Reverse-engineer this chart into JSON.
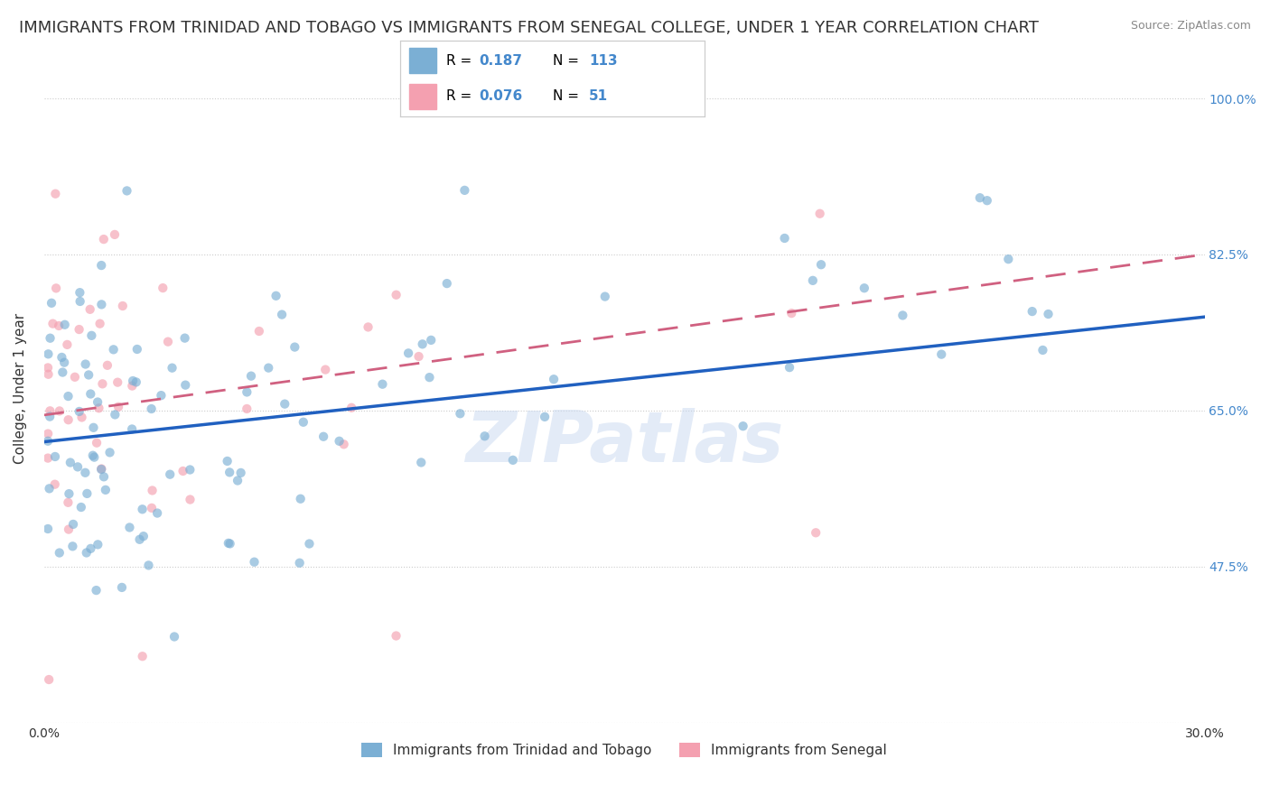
{
  "title": "IMMIGRANTS FROM TRINIDAD AND TOBAGO VS IMMIGRANTS FROM SENEGAL COLLEGE, UNDER 1 YEAR CORRELATION CHART",
  "source": "Source: ZipAtlas.com",
  "xlabel": "",
  "ylabel": "College, Under 1 year",
  "legend_label1": "Immigrants from Trinidad and Tobago",
  "legend_label2": "Immigrants from Senegal",
  "R1": 0.187,
  "N1": 113,
  "R2": 0.076,
  "N2": 51,
  "xlim": [
    0.0,
    0.3
  ],
  "ylim": [
    0.3,
    1.05
  ],
  "xticks": [
    0.0,
    0.05,
    0.1,
    0.15,
    0.2,
    0.25,
    0.3
  ],
  "xticklabels": [
    "0.0%",
    "",
    "",
    "",
    "",
    "",
    "30.0%"
  ],
  "ytick_values": [
    0.3,
    0.475,
    0.65,
    0.825,
    1.0
  ],
  "ytick_labels": [
    "",
    "47.5%",
    "65.0%",
    "82.5%",
    "100.0%"
  ],
  "color1": "#7bafd4",
  "color2": "#f4a0b0",
  "line_color1": "#2060c0",
  "line_color2": "#d06080",
  "watermark": "ZIPatlas",
  "background_color": "#ffffff",
  "scatter_alpha": 0.65,
  "scatter_size": 55,
  "title_fontsize": 13,
  "axis_fontsize": 11,
  "tick_fontsize": 10,
  "right_label_color": "#4488cc",
  "line1_x0": 0.0,
  "line1_y0": 0.615,
  "line1_x1": 0.3,
  "line1_y1": 0.755,
  "line2_x0": 0.0,
  "line2_y0": 0.645,
  "line2_x1": 0.3,
  "line2_y1": 0.825
}
